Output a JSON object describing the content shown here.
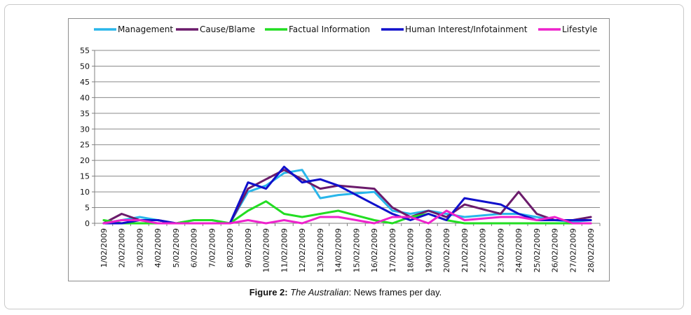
{
  "caption": {
    "label": "Figure 2:",
    "source": "The Australian",
    "text": ": News frames per day."
  },
  "chart_data": {
    "type": "line",
    "title": "",
    "xlabel": "",
    "ylabel": "",
    "ylim": [
      0,
      55
    ],
    "yticks": [
      0,
      5,
      10,
      15,
      20,
      25,
      30,
      35,
      40,
      45,
      50,
      55
    ],
    "grid": "horizontal",
    "legend_position": "top",
    "categories": [
      "1/02/2009",
      "2/02/2009",
      "3/02/2009",
      "4/02/2009",
      "5/02/2009",
      "6/02/2009",
      "7/02/2009",
      "8/02/2009",
      "9/02/2009",
      "10/02/2009",
      "11/02/2009",
      "12/02/2009",
      "13/02/2009",
      "14/02/2009",
      "15/02/2009",
      "16/02/2009",
      "17/02/2009",
      "18/02/2009",
      "19/02/2009",
      "20/02/2009",
      "21/02/2009",
      "22/02/2009",
      "23/02/2009",
      "24/02/2009",
      "25/02/2009",
      "26/02/2009",
      "27/02/2009",
      "28/02/2009"
    ],
    "series": [
      {
        "name": "Management",
        "color": "#29b6ea",
        "values": [
          0,
          1,
          2,
          1,
          0,
          1,
          1,
          0,
          10,
          12,
          16,
          17,
          8,
          9,
          9.5,
          10,
          4,
          3,
          4,
          3,
          2,
          2.5,
          3,
          3,
          2,
          1,
          0.5,
          1
        ]
      },
      {
        "name": "Cause/Blame",
        "color": "#6b1b6b",
        "values": [
          0,
          3,
          1,
          1,
          0,
          0,
          0,
          0,
          11,
          14,
          17,
          14,
          11,
          12,
          11.5,
          11,
          5,
          2,
          4,
          2,
          6,
          4.5,
          3,
          10,
          3,
          1,
          1,
          2
        ]
      },
      {
        "name": "Factual Information",
        "color": "#22dd22",
        "values": [
          1,
          0,
          0,
          0,
          0,
          1,
          1,
          0,
          4,
          7,
          3,
          2,
          3,
          4,
          2.5,
          1,
          0,
          2,
          3,
          1,
          0,
          0,
          0,
          0,
          0,
          0,
          0,
          0
        ]
      },
      {
        "name": "Human Interest/Infotainment",
        "color": "#1010cc",
        "values": [
          0,
          0,
          1,
          1,
          0,
          0,
          0,
          0,
          13,
          11,
          18,
          13,
          14,
          12,
          9,
          6,
          3,
          1,
          3,
          1,
          8,
          7,
          6,
          3,
          1,
          1,
          1,
          1
        ]
      },
      {
        "name": "Lifestyle",
        "color": "#ee22cc",
        "values": [
          0,
          1,
          1,
          0,
          0,
          0,
          0,
          0,
          1,
          0,
          1,
          0,
          2,
          2,
          1,
          0,
          2,
          2,
          0,
          4,
          1,
          1.5,
          2,
          2,
          1,
          2,
          0,
          0
        ]
      }
    ]
  }
}
